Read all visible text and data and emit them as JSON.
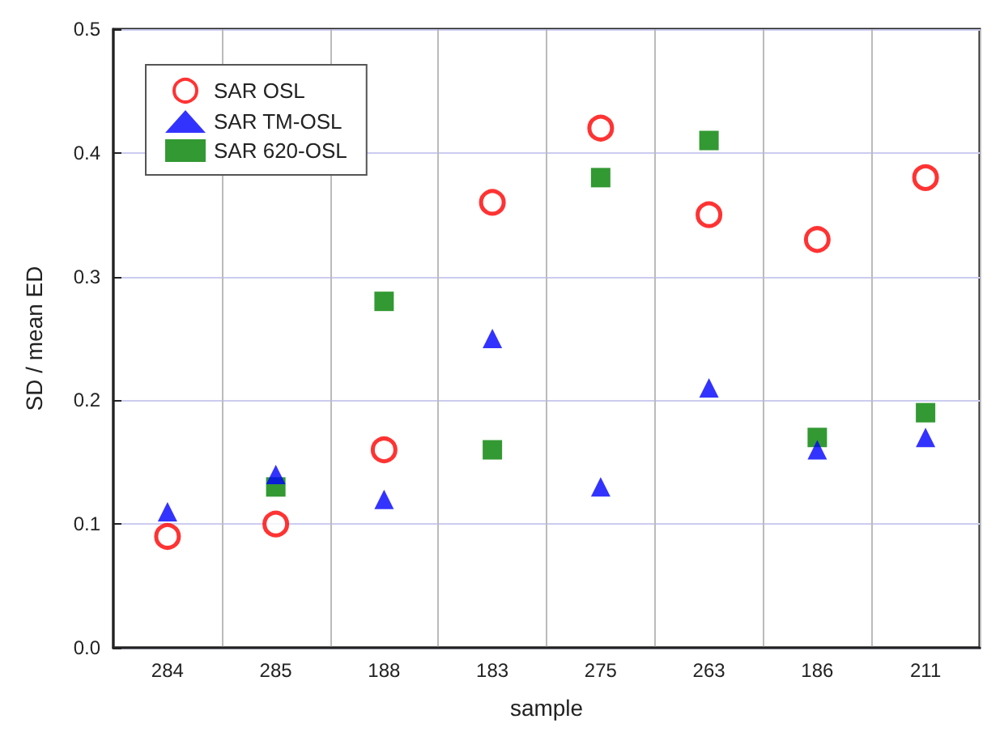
{
  "chart_data": {
    "type": "scatter",
    "xlabel": "sample",
    "ylabel": "SD / mean ED",
    "categories": [
      "284",
      "285",
      "188",
      "183",
      "275",
      "263",
      "186",
      "211"
    ],
    "ylim": [
      0,
      0.5
    ],
    "yticks": [
      {
        "value": 0,
        "label": "0.0"
      },
      {
        "value": 0.1,
        "label": "0.1"
      },
      {
        "value": 0.2,
        "label": "0.2"
      },
      {
        "value": 0.3,
        "label": "0.3"
      },
      {
        "value": 0.4,
        "label": "0.4"
      },
      {
        "value": 0.5,
        "label": "0.5"
      }
    ],
    "grid": true,
    "legend": "top left",
    "series": [
      {
        "name": "SAR OSL",
        "color": "#ff0000",
        "marker": "circle",
        "values": [
          0.09,
          0.1,
          0.16,
          0.36,
          0.42,
          0.35,
          0.33,
          0.38
        ]
      },
      {
        "name": "SAR TM-OSL",
        "color": "#0000ff",
        "marker": "triangle",
        "values": [
          0.11,
          0.14,
          0.12,
          0.25,
          0.13,
          0.21,
          0.16,
          0.17
        ]
      },
      {
        "name": "SAR 620-OSL",
        "color": "#008000",
        "marker": "square",
        "values": [
          null,
          0.13,
          0.28,
          0.16,
          0.38,
          0.41,
          0.17,
          0.19
        ]
      }
    ]
  }
}
